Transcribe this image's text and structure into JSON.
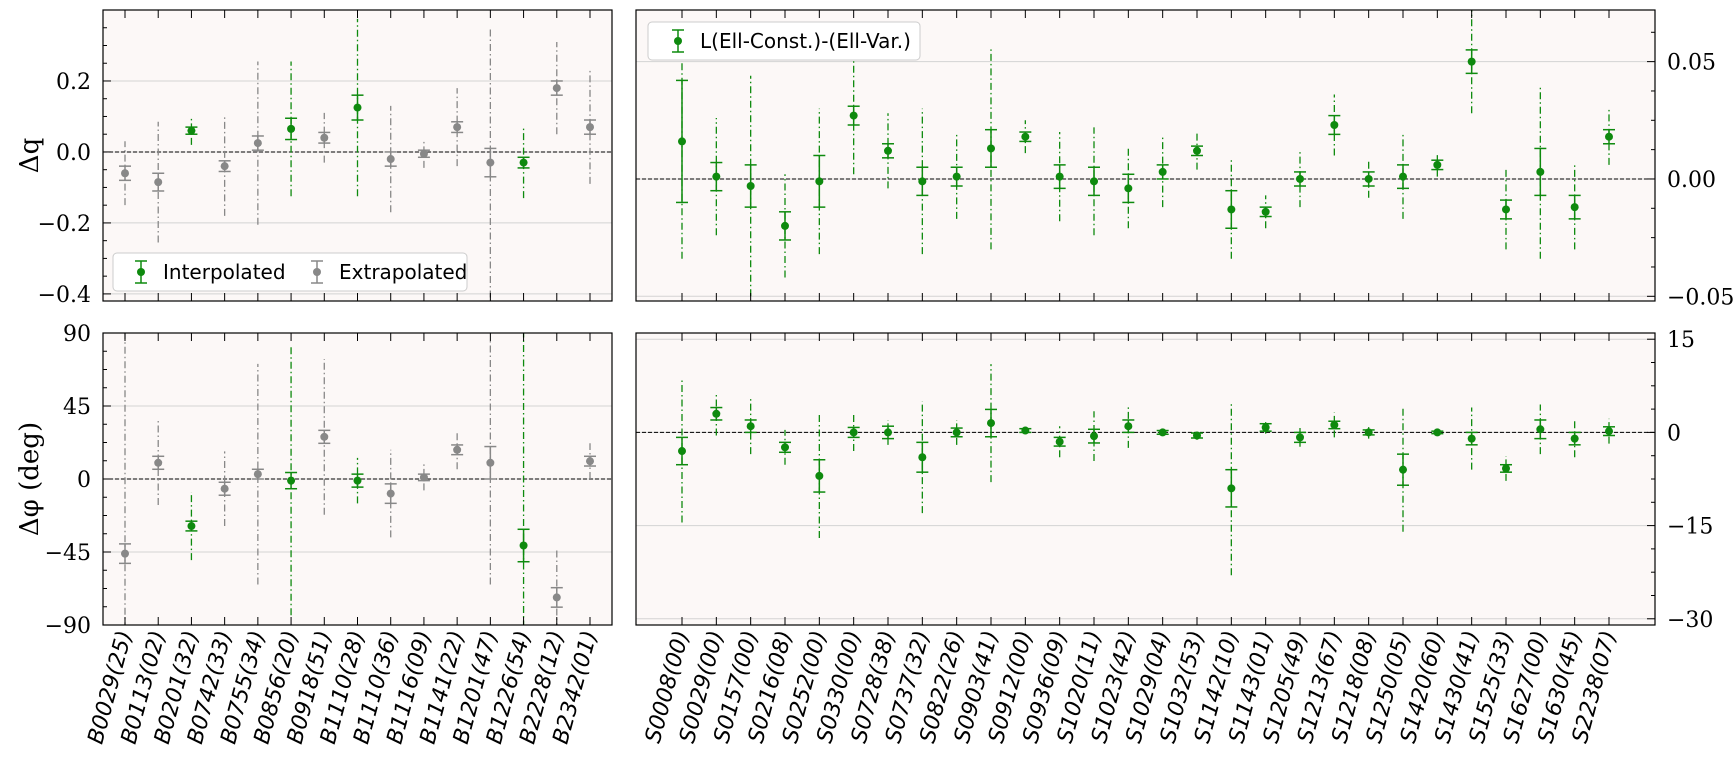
{
  "colors": {
    "interpolated": "#0e8a0e",
    "extrapolated": "#888888",
    "panel_bg": "#fcf8f7",
    "grid": "#d3d3d3"
  },
  "chart_data": [
    {
      "id": "dq_left",
      "type": "scatter",
      "ylabel": "Δq",
      "ylim": [
        -0.42,
        0.4
      ],
      "yticks": [
        -0.4,
        -0.2,
        0.0,
        0.2
      ],
      "ytick_labels": [
        "−0.4",
        "−0.2",
        "0.0",
        "0.2"
      ],
      "ytick_side": "left",
      "reference_line": 0,
      "categories": [
        "B0029(25)",
        "B0113(02)",
        "B0201(32)",
        "B0742(33)",
        "B0755(34)",
        "B0856(20)",
        "B0918(51)",
        "B1110(28)",
        "B1110(36)",
        "B1116(09)",
        "B1141(22)",
        "B1201(47)",
        "B1226(54)",
        "B2228(12)",
        "B2342(01)"
      ],
      "legend": {
        "position": "lower-left",
        "entries": [
          "Interpolated",
          "Extrapolated"
        ]
      },
      "series": [
        {
          "name": "Interpolated",
          "color_key": "interpolated",
          "points": [
            {
              "cat": 2,
              "y": 0.06,
              "err": 0.01,
              "ext": 0.04
            },
            {
              "cat": 5,
              "y": 0.065,
              "err": 0.03,
              "ext": 0.19
            },
            {
              "cat": 7,
              "y": 0.125,
              "err": 0.035,
              "ext": 0.25
            },
            {
              "cat": 12,
              "y": -0.03,
              "err": 0.015,
              "ext": 0.1
            }
          ]
        },
        {
          "name": "Extrapolated",
          "color_key": "extrapolated",
          "points": [
            {
              "cat": 0,
              "y": -0.06,
              "err": 0.02,
              "ext": 0.09
            },
            {
              "cat": 1,
              "y": -0.085,
              "err": 0.025,
              "ext": 0.17
            },
            {
              "cat": 3,
              "y": -0.04,
              "err": 0.015,
              "ext": 0.14
            },
            {
              "cat": 4,
              "y": 0.025,
              "err": 0.02,
              "ext": 0.23
            },
            {
              "cat": 6,
              "y": 0.04,
              "err": 0.015,
              "ext": 0.07
            },
            {
              "cat": 8,
              "y": -0.02,
              "err": 0.02,
              "ext": 0.15
            },
            {
              "cat": 9,
              "y": -0.005,
              "err": 0.01,
              "ext": 0.04
            },
            {
              "cat": 10,
              "y": 0.07,
              "err": 0.015,
              "ext": 0.11
            },
            {
              "cat": 11,
              "y": -0.03,
              "err": 0.04,
              "ext": 0.38
            },
            {
              "cat": 13,
              "y": 0.18,
              "err": 0.02,
              "ext": 0.13
            },
            {
              "cat": 14,
              "y": 0.07,
              "err": 0.02,
              "ext": 0.16
            }
          ]
        }
      ]
    },
    {
      "id": "dq_right",
      "type": "scatter",
      "ylim": [
        -0.052,
        0.072
      ],
      "yticks": [
        -0.05,
        0.0,
        0.05
      ],
      "ytick_labels": [
        "−0.05",
        "0.00",
        "0.05"
      ],
      "ytick_side": "right",
      "reference_line": 0,
      "categories": [
        "S0008(00)",
        "S0029(00)",
        "S0157(00)",
        "S0216(08)",
        "S0252(00)",
        "S0330(00)",
        "S0728(38)",
        "S0737(32)",
        "S0822(26)",
        "S0903(41)",
        "S0912(00)",
        "S0936(09)",
        "S1020(11)",
        "S1023(42)",
        "S1029(04)",
        "S1032(53)",
        "S1142(10)",
        "S1143(01)",
        "S1205(49)",
        "S1213(67)",
        "S1218(08)",
        "S1250(05)",
        "S1420(60)",
        "S1430(41)",
        "S1525(33)",
        "S1627(00)",
        "S1630(45)",
        "S2238(07)"
      ],
      "legend": {
        "position": "top-left",
        "entries": [
          "L(Ell-Const.)-(Ell-Var.)"
        ]
      },
      "series": [
        {
          "name": "L(Ell-Const.)-(Ell-Var.)",
          "color_key": "interpolated",
          "points": [
            {
              "cat": 0,
              "y": 0.016,
              "err": 0.026,
              "ext": 0.05
            },
            {
              "cat": 1,
              "y": 0.001,
              "err": 0.006,
              "ext": 0.025
            },
            {
              "cat": 2,
              "y": -0.003,
              "err": 0.009,
              "ext": 0.047
            },
            {
              "cat": 3,
              "y": -0.02,
              "err": 0.006,
              "ext": 0.022
            },
            {
              "cat": 4,
              "y": -0.001,
              "err": 0.011,
              "ext": 0.031
            },
            {
              "cat": 5,
              "y": 0.027,
              "err": 0.004,
              "ext": 0.025
            },
            {
              "cat": 6,
              "y": 0.012,
              "err": 0.003,
              "ext": 0.016
            },
            {
              "cat": 7,
              "y": -0.001,
              "err": 0.006,
              "ext": 0.031
            },
            {
              "cat": 8,
              "y": 0.001,
              "err": 0.004,
              "ext": 0.018
            },
            {
              "cat": 9,
              "y": 0.013,
              "err": 0.008,
              "ext": 0.043
            },
            {
              "cat": 10,
              "y": 0.018,
              "err": 0.002,
              "ext": 0.007
            },
            {
              "cat": 11,
              "y": 0.001,
              "err": 0.005,
              "ext": 0.019
            },
            {
              "cat": 12,
              "y": -0.001,
              "err": 0.006,
              "ext": 0.023
            },
            {
              "cat": 13,
              "y": -0.004,
              "err": 0.006,
              "ext": 0.017
            },
            {
              "cat": 14,
              "y": 0.003,
              "err": 0.003,
              "ext": 0.015
            },
            {
              "cat": 15,
              "y": 0.012,
              "err": 0.002,
              "ext": 0.008
            },
            {
              "cat": 16,
              "y": -0.013,
              "err": 0.008,
              "ext": 0.021
            },
            {
              "cat": 17,
              "y": -0.014,
              "err": 0.002,
              "ext": 0.007
            },
            {
              "cat": 18,
              "y": 0.0,
              "err": 0.003,
              "ext": 0.012
            },
            {
              "cat": 19,
              "y": 0.023,
              "err": 0.004,
              "ext": 0.013
            },
            {
              "cat": 20,
              "y": 0.0,
              "err": 0.003,
              "ext": 0.008
            },
            {
              "cat": 21,
              "y": 0.001,
              "err": 0.005,
              "ext": 0.018
            },
            {
              "cat": 22,
              "y": 0.006,
              "err": 0.002,
              "ext": 0.005
            },
            {
              "cat": 23,
              "y": 0.05,
              "err": 0.005,
              "ext": 0.022
            },
            {
              "cat": 24,
              "y": -0.013,
              "err": 0.004,
              "ext": 0.017
            },
            {
              "cat": 25,
              "y": 0.003,
              "err": 0.01,
              "ext": 0.037
            },
            {
              "cat": 26,
              "y": -0.012,
              "err": 0.005,
              "ext": 0.018
            },
            {
              "cat": 27,
              "y": 0.018,
              "err": 0.003,
              "ext": 0.012
            }
          ]
        }
      ]
    },
    {
      "id": "dphi_left",
      "type": "scatter",
      "ylabel": "Δφ (deg)",
      "ylim": [
        -90,
        90
      ],
      "yticks": [
        -90,
        -45,
        0,
        45,
        90
      ],
      "ytick_labels": [
        "−90",
        "−45",
        "0",
        "45",
        "90"
      ],
      "ytick_side": "left",
      "reference_line": 0,
      "categories": [
        "B0029(25)",
        "B0113(02)",
        "B0201(32)",
        "B0742(33)",
        "B0755(34)",
        "B0856(20)",
        "B0918(51)",
        "B1110(28)",
        "B1110(36)",
        "B1116(09)",
        "B1141(22)",
        "B1201(47)",
        "B1226(54)",
        "B2228(12)",
        "B2342(01)"
      ],
      "series": [
        {
          "name": "Interpolated",
          "color_key": "interpolated",
          "points": [
            {
              "cat": 2,
              "y": -29,
              "err": 3,
              "ext": 21
            },
            {
              "cat": 5,
              "y": -1,
              "err": 5,
              "ext": 83
            },
            {
              "cat": 7,
              "y": -1,
              "err": 4,
              "ext": 14
            },
            {
              "cat": 12,
              "y": -41,
              "err": 10,
              "ext": 131
            }
          ]
        },
        {
          "name": "Extrapolated",
          "color_key": "extrapolated",
          "points": [
            {
              "cat": 0,
              "y": -46,
              "err": 6,
              "ext": 136
            },
            {
              "cat": 1,
              "y": 10,
              "err": 4,
              "ext": 26
            },
            {
              "cat": 3,
              "y": -6,
              "err": 4,
              "ext": 23
            },
            {
              "cat": 4,
              "y": 3,
              "err": 3,
              "ext": 68
            },
            {
              "cat": 6,
              "y": 26,
              "err": 4,
              "ext": 48
            },
            {
              "cat": 8,
              "y": -9,
              "err": 6,
              "ext": 27
            },
            {
              "cat": 9,
              "y": 1,
              "err": 2,
              "ext": 8
            },
            {
              "cat": 10,
              "y": 18,
              "err": 3,
              "ext": 12
            },
            {
              "cat": 11,
              "y": 10,
              "err": 10,
              "ext": 75
            },
            {
              "cat": 13,
              "y": -73,
              "err": 6,
              "ext": 29
            },
            {
              "cat": 14,
              "y": 11,
              "err": 3,
              "ext": 11
            }
          ]
        }
      ]
    },
    {
      "id": "dphi_right",
      "type": "scatter",
      "ylim": [
        -31,
        16
      ],
      "yticks": [
        -30,
        -15,
        0,
        15
      ],
      "ytick_labels": [
        "−30",
        "−15",
        "0",
        "15"
      ],
      "ytick_side": "right",
      "reference_line": 0,
      "categories": [
        "S0008(00)",
        "S0029(00)",
        "S0157(00)",
        "S0216(08)",
        "S0252(00)",
        "S0330(00)",
        "S0728(38)",
        "S0737(32)",
        "S0822(26)",
        "S0903(41)",
        "S0912(00)",
        "S0936(09)",
        "S1020(11)",
        "S1023(42)",
        "S1029(04)",
        "S1032(53)",
        "S1142(10)",
        "S1143(01)",
        "S1205(49)",
        "S1213(67)",
        "S1218(08)",
        "S1250(05)",
        "S1420(60)",
        "S1430(41)",
        "S1525(33)",
        "S1627(00)",
        "S1630(45)",
        "S2238(07)"
      ],
      "series": [
        {
          "name": "L(Ell-Const.)-(Ell-Var.)",
          "color_key": "interpolated",
          "points": [
            {
              "cat": 0,
              "y": -3,
              "err": 2.2,
              "ext": 11.5
            },
            {
              "cat": 1,
              "y": 3,
              "err": 1,
              "ext": 3.5
            },
            {
              "cat": 2,
              "y": 1,
              "err": 1,
              "ext": 4.5
            },
            {
              "cat": 3,
              "y": -2.4,
              "err": 0.8,
              "ext": 2.8
            },
            {
              "cat": 4,
              "y": -7,
              "err": 2.6,
              "ext": 10
            },
            {
              "cat": 5,
              "y": 0,
              "err": 0.8,
              "ext": 3
            },
            {
              "cat": 6,
              "y": 0,
              "err": 1,
              "ext": 2
            },
            {
              "cat": 7,
              "y": -4,
              "err": 2.4,
              "ext": 9
            },
            {
              "cat": 8,
              "y": 0,
              "err": 0.7,
              "ext": 2
            },
            {
              "cat": 9,
              "y": 1.5,
              "err": 2.2,
              "ext": 9.5
            },
            {
              "cat": 10,
              "y": 0.3,
              "err": 0.3,
              "ext": 0.5
            },
            {
              "cat": 11,
              "y": -1.5,
              "err": 0.7,
              "ext": 2.5
            },
            {
              "cat": 12,
              "y": -0.6,
              "err": 1.1,
              "ext": 4
            },
            {
              "cat": 13,
              "y": 1,
              "err": 1,
              "ext": 3.5
            },
            {
              "cat": 14,
              "y": 0,
              "err": 0.3,
              "ext": 0.5
            },
            {
              "cat": 15,
              "y": -0.5,
              "err": 0.4,
              "ext": 0.7
            },
            {
              "cat": 16,
              "y": -9,
              "err": 3,
              "ext": 14
            },
            {
              "cat": 17,
              "y": 0.8,
              "err": 0.6,
              "ext": 1
            },
            {
              "cat": 18,
              "y": -0.8,
              "err": 0.8,
              "ext": 1.5
            },
            {
              "cat": 19,
              "y": 1.2,
              "err": 0.6,
              "ext": 2
            },
            {
              "cat": 20,
              "y": 0,
              "err": 0.4,
              "ext": 1
            },
            {
              "cat": 21,
              "y": -6,
              "err": 2.5,
              "ext": 10
            },
            {
              "cat": 22,
              "y": 0,
              "err": 0.2,
              "ext": 0.4
            },
            {
              "cat": 23,
              "y": -1,
              "err": 1,
              "ext": 5
            },
            {
              "cat": 24,
              "y": -5.8,
              "err": 0.6,
              "ext": 2
            },
            {
              "cat": 25,
              "y": 0.5,
              "err": 1.5,
              "ext": 4
            },
            {
              "cat": 26,
              "y": -1,
              "err": 1,
              "ext": 3
            },
            {
              "cat": 27,
              "y": 0.2,
              "err": 0.7,
              "ext": 2
            }
          ]
        }
      ]
    }
  ]
}
